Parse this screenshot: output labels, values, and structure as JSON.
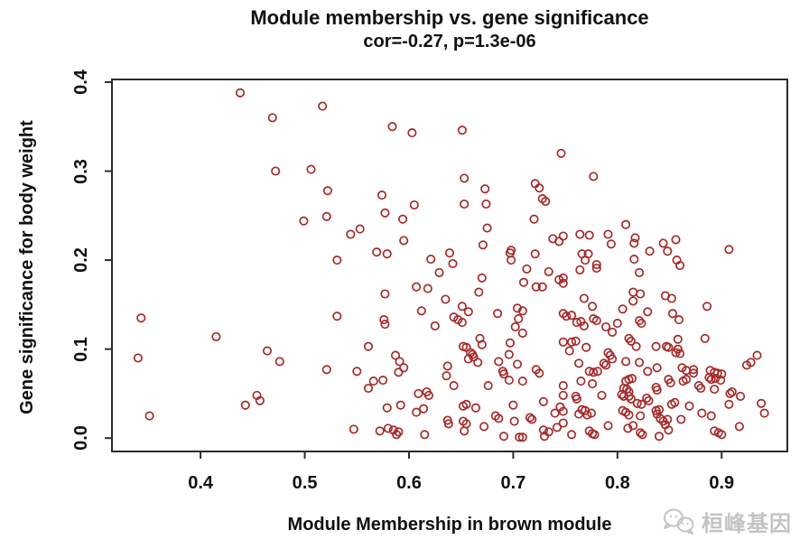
{
  "figure": {
    "title_line1": "Module membership vs. gene significance",
    "title_line2": "cor=-0.27, p=1.3e-06"
  },
  "watermark": {
    "text": "桓峰基因",
    "icon": "chat-bubbles-icon",
    "color": "#c3c3c3"
  },
  "style": {
    "axis_color": "#2b2b2b",
    "text_color": "#111111",
    "point_color": "#A52A2A",
    "background": "#ffffff"
  },
  "chart_data": {
    "type": "scatter",
    "title": "Module membership vs. gene significance",
    "subtitle": "cor=-0.27, p=1.3e-06",
    "correlation": -0.27,
    "p_value": "1.3e-06",
    "xlabel": "Module Membership in brown module",
    "ylabel": "Gene significance for body weight",
    "xlim": [
      0.315,
      0.963
    ],
    "ylim": [
      -0.015,
      0.403
    ],
    "x_ticks": [
      0.4,
      0.5,
      0.6,
      0.7,
      0.8,
      0.9
    ],
    "y_ticks": [
      0.0,
      0.1,
      0.2,
      0.3,
      0.4
    ],
    "grid": false,
    "legend": "none",
    "marker": "open-circle",
    "point_color": "#A52A2A",
    "points": [
      [
        0.438,
        0.388
      ],
      [
        0.517,
        0.373
      ],
      [
        0.469,
        0.36
      ],
      [
        0.472,
        0.3
      ],
      [
        0.506,
        0.302
      ],
      [
        0.522,
        0.278
      ],
      [
        0.521,
        0.249
      ],
      [
        0.499,
        0.244
      ],
      [
        0.531,
        0.2
      ],
      [
        0.584,
        0.35
      ],
      [
        0.603,
        0.343
      ],
      [
        0.651,
        0.346
      ],
      [
        0.746,
        0.32
      ],
      [
        0.653,
        0.292
      ],
      [
        0.673,
        0.28
      ],
      [
        0.574,
        0.273
      ],
      [
        0.605,
        0.262
      ],
      [
        0.653,
        0.263
      ],
      [
        0.674,
        0.263
      ],
      [
        0.721,
        0.286
      ],
      [
        0.725,
        0.281
      ],
      [
        0.728,
        0.269
      ],
      [
        0.731,
        0.266
      ],
      [
        0.577,
        0.253
      ],
      [
        0.594,
        0.246
      ],
      [
        0.72,
        0.246
      ],
      [
        0.544,
        0.229
      ],
      [
        0.553,
        0.235
      ],
      [
        0.675,
        0.236
      ],
      [
        0.595,
        0.222
      ],
      [
        0.738,
        0.224
      ],
      [
        0.744,
        0.221
      ],
      [
        0.569,
        0.209
      ],
      [
        0.579,
        0.207
      ],
      [
        0.671,
        0.217
      ],
      [
        0.698,
        0.211
      ],
      [
        0.697,
        0.208
      ],
      [
        0.621,
        0.201
      ],
      [
        0.639,
        0.208
      ],
      [
        0.642,
        0.196
      ],
      [
        0.698,
        0.2
      ],
      [
        0.721,
        0.207
      ],
      [
        0.777,
        0.294
      ],
      [
        0.808,
        0.24
      ],
      [
        0.764,
        0.229
      ],
      [
        0.773,
        0.228
      ],
      [
        0.791,
        0.229
      ],
      [
        0.794,
        0.218
      ],
      [
        0.817,
        0.225
      ],
      [
        0.816,
        0.219
      ],
      [
        0.856,
        0.223
      ],
      [
        0.844,
        0.219
      ],
      [
        0.848,
        0.21
      ],
      [
        0.831,
        0.21
      ],
      [
        0.907,
        0.212
      ],
      [
        0.766,
        0.207
      ],
      [
        0.772,
        0.207
      ],
      [
        0.769,
        0.2
      ],
      [
        0.78,
        0.195
      ],
      [
        0.816,
        0.201
      ],
      [
        0.857,
        0.2
      ],
      [
        0.748,
        0.227
      ],
      [
        0.343,
        0.135
      ],
      [
        0.415,
        0.114
      ],
      [
        0.34,
        0.09
      ],
      [
        0.464,
        0.098
      ],
      [
        0.476,
        0.086
      ],
      [
        0.521,
        0.077
      ],
      [
        0.531,
        0.137
      ],
      [
        0.454,
        0.048
      ],
      [
        0.457,
        0.042
      ],
      [
        0.443,
        0.037
      ],
      [
        0.351,
        0.025
      ],
      [
        0.629,
        0.186
      ],
      [
        0.67,
        0.18
      ],
      [
        0.713,
        0.19
      ],
      [
        0.734,
        0.187
      ],
      [
        0.607,
        0.17
      ],
      [
        0.618,
        0.168
      ],
      [
        0.577,
        0.162
      ],
      [
        0.667,
        0.164
      ],
      [
        0.71,
        0.175
      ],
      [
        0.722,
        0.17
      ],
      [
        0.728,
        0.17
      ],
      [
        0.744,
        0.178
      ],
      [
        0.748,
        0.174
      ],
      [
        0.635,
        0.156
      ],
      [
        0.651,
        0.148
      ],
      [
        0.612,
        0.143
      ],
      [
        0.643,
        0.136
      ],
      [
        0.647,
        0.133
      ],
      [
        0.651,
        0.13
      ],
      [
        0.657,
        0.142
      ],
      [
        0.685,
        0.14
      ],
      [
        0.704,
        0.146
      ],
      [
        0.709,
        0.143
      ],
      [
        0.625,
        0.126
      ],
      [
        0.576,
        0.133
      ],
      [
        0.577,
        0.128
      ],
      [
        0.705,
        0.134
      ],
      [
        0.702,
        0.125
      ],
      [
        0.709,
        0.118
      ],
      [
        0.668,
        0.112
      ],
      [
        0.67,
        0.105
      ],
      [
        0.697,
        0.107
      ],
      [
        0.561,
        0.103
      ],
      [
        0.652,
        0.103
      ],
      [
        0.655,
        0.102
      ],
      [
        0.659,
        0.096
      ],
      [
        0.661,
        0.094
      ],
      [
        0.662,
        0.091
      ],
      [
        0.657,
        0.089
      ],
      [
        0.666,
        0.085
      ],
      [
        0.686,
        0.086
      ],
      [
        0.696,
        0.094
      ],
      [
        0.704,
        0.083
      ],
      [
        0.587,
        0.093
      ],
      [
        0.591,
        0.086
      ],
      [
        0.595,
        0.079
      ],
      [
        0.59,
        0.074
      ],
      [
        0.55,
        0.075
      ],
      [
        0.637,
        0.081
      ],
      [
        0.636,
        0.07
      ],
      [
        0.69,
        0.075
      ],
      [
        0.691,
        0.072
      ],
      [
        0.696,
        0.065
      ],
      [
        0.722,
        0.077
      ],
      [
        0.725,
        0.073
      ],
      [
        0.709,
        0.064
      ],
      [
        0.566,
        0.064
      ],
      [
        0.575,
        0.065
      ],
      [
        0.561,
        0.056
      ],
      [
        0.643,
        0.059
      ],
      [
        0.676,
        0.059
      ],
      [
        0.609,
        0.05
      ],
      [
        0.617,
        0.052
      ],
      [
        0.619,
        0.048
      ],
      [
        0.579,
        0.034
      ],
      [
        0.592,
        0.037
      ],
      [
        0.607,
        0.029
      ],
      [
        0.614,
        0.033
      ],
      [
        0.652,
        0.036
      ],
      [
        0.655,
        0.038
      ],
      [
        0.664,
        0.034
      ],
      [
        0.7,
        0.037
      ],
      [
        0.729,
        0.041
      ],
      [
        0.745,
        0.035
      ],
      [
        0.74,
        0.028
      ],
      [
        0.637,
        0.02
      ],
      [
        0.638,
        0.016
      ],
      [
        0.652,
        0.019
      ],
      [
        0.655,
        0.016
      ],
      [
        0.672,
        0.013
      ],
      [
        0.683,
        0.025
      ],
      [
        0.686,
        0.022
      ],
      [
        0.701,
        0.019
      ],
      [
        0.716,
        0.023
      ],
      [
        0.718,
        0.021
      ],
      [
        0.547,
        0.01
      ],
      [
        0.572,
        0.008
      ],
      [
        0.58,
        0.011
      ],
      [
        0.585,
        0.009
      ],
      [
        0.59,
        0.007
      ],
      [
        0.588,
        0.004
      ],
      [
        0.615,
        0.004
      ],
      [
        0.653,
        0.008
      ],
      [
        0.691,
        0.002
      ],
      [
        0.709,
        0.001
      ],
      [
        0.729,
        0.009
      ],
      [
        0.734,
        0.007
      ],
      [
        0.73,
        0.002
      ],
      [
        0.748,
        0.048
      ],
      [
        0.706,
        0.001
      ],
      [
        0.742,
        0.012
      ],
      [
        0.748,
        0.017
      ],
      [
        0.764,
        0.189
      ],
      [
        0.78,
        0.191
      ],
      [
        0.821,
        0.186
      ],
      [
        0.86,
        0.194
      ],
      [
        0.748,
        0.18
      ],
      [
        0.768,
        0.157
      ],
      [
        0.776,
        0.148
      ],
      [
        0.815,
        0.164
      ],
      [
        0.822,
        0.162
      ],
      [
        0.815,
        0.154
      ],
      [
        0.846,
        0.16
      ],
      [
        0.852,
        0.157
      ],
      [
        0.886,
        0.148
      ],
      [
        0.805,
        0.145
      ],
      [
        0.829,
        0.142
      ],
      [
        0.853,
        0.14
      ],
      [
        0.859,
        0.133
      ],
      [
        0.821,
        0.132
      ],
      [
        0.823,
        0.129
      ],
      [
        0.748,
        0.14
      ],
      [
        0.751,
        0.137
      ],
      [
        0.756,
        0.138
      ],
      [
        0.761,
        0.13
      ],
      [
        0.765,
        0.131
      ],
      [
        0.768,
        0.126
      ],
      [
        0.777,
        0.134
      ],
      [
        0.78,
        0.132
      ],
      [
        0.789,
        0.125
      ],
      [
        0.8,
        0.129
      ],
      [
        0.795,
        0.119
      ],
      [
        0.811,
        0.112
      ],
      [
        0.813,
        0.109
      ],
      [
        0.818,
        0.103
      ],
      [
        0.748,
        0.108
      ],
      [
        0.756,
        0.108
      ],
      [
        0.754,
        0.098
      ],
      [
        0.76,
        0.109
      ],
      [
        0.77,
        0.102
      ],
      [
        0.837,
        0.103
      ],
      [
        0.847,
        0.103
      ],
      [
        0.849,
        0.102
      ],
      [
        0.858,
        0.111
      ],
      [
        0.858,
        0.1
      ],
      [
        0.856,
        0.096
      ],
      [
        0.86,
        0.095
      ],
      [
        0.884,
        0.112
      ],
      [
        0.924,
        0.082
      ],
      [
        0.928,
        0.085
      ],
      [
        0.934,
        0.093
      ],
      [
        0.791,
        0.096
      ],
      [
        0.793,
        0.093
      ],
      [
        0.795,
        0.089
      ],
      [
        0.787,
        0.084
      ],
      [
        0.789,
        0.082
      ],
      [
        0.763,
        0.084
      ],
      [
        0.773,
        0.075
      ],
      [
        0.777,
        0.074
      ],
      [
        0.781,
        0.075
      ],
      [
        0.808,
        0.086
      ],
      [
        0.821,
        0.085
      ],
      [
        0.829,
        0.075
      ],
      [
        0.838,
        0.079
      ],
      [
        0.862,
        0.079
      ],
      [
        0.866,
        0.076
      ],
      [
        0.873,
        0.077
      ],
      [
        0.873,
        0.073
      ],
      [
        0.889,
        0.076
      ],
      [
        0.893,
        0.074
      ],
      [
        0.888,
        0.068
      ],
      [
        0.89,
        0.066
      ],
      [
        0.849,
        0.066
      ],
      [
        0.851,
        0.062
      ],
      [
        0.863,
        0.064
      ],
      [
        0.866,
        0.066
      ],
      [
        0.878,
        0.059
      ],
      [
        0.88,
        0.056
      ],
      [
        0.765,
        0.064
      ],
      [
        0.776,
        0.061
      ],
      [
        0.748,
        0.059
      ],
      [
        0.808,
        0.064
      ],
      [
        0.811,
        0.066
      ],
      [
        0.814,
        0.067
      ],
      [
        0.806,
        0.056
      ],
      [
        0.809,
        0.055
      ],
      [
        0.811,
        0.052
      ],
      [
        0.837,
        0.057
      ],
      [
        0.838,
        0.054
      ],
      [
        0.893,
        0.055
      ],
      [
        0.908,
        0.05
      ],
      [
        0.918,
        0.047
      ],
      [
        0.76,
        0.047
      ],
      [
        0.761,
        0.044
      ],
      [
        0.785,
        0.048
      ],
      [
        0.804,
        0.049
      ],
      [
        0.806,
        0.047
      ],
      [
        0.811,
        0.047
      ],
      [
        0.813,
        0.044
      ],
      [
        0.828,
        0.045
      ],
      [
        0.83,
        0.042
      ],
      [
        0.819,
        0.039
      ],
      [
        0.823,
        0.038
      ],
      [
        0.852,
        0.038
      ],
      [
        0.855,
        0.04
      ],
      [
        0.869,
        0.036
      ],
      [
        0.907,
        0.038
      ],
      [
        0.938,
        0.039
      ],
      [
        0.941,
        0.028
      ],
      [
        0.766,
        0.032
      ],
      [
        0.769,
        0.031
      ],
      [
        0.763,
        0.027
      ],
      [
        0.771,
        0.026
      ],
      [
        0.775,
        0.028
      ],
      [
        0.748,
        0.03
      ],
      [
        0.805,
        0.031
      ],
      [
        0.808,
        0.029
      ],
      [
        0.811,
        0.026
      ],
      [
        0.815,
        0.014
      ],
      [
        0.81,
        0.011
      ],
      [
        0.822,
        0.025
      ],
      [
        0.837,
        0.031
      ],
      [
        0.84,
        0.032
      ],
      [
        0.838,
        0.027
      ],
      [
        0.841,
        0.022
      ],
      [
        0.844,
        0.019
      ],
      [
        0.848,
        0.021
      ],
      [
        0.846,
        0.015
      ],
      [
        0.849,
        0.009
      ],
      [
        0.861,
        0.021
      ],
      [
        0.881,
        0.028
      ],
      [
        0.89,
        0.025
      ],
      [
        0.917,
        0.013
      ],
      [
        0.791,
        0.014
      ],
      [
        0.773,
        0.008
      ],
      [
        0.776,
        0.005
      ],
      [
        0.778,
        0.004
      ],
      [
        0.756,
        0.004
      ],
      [
        0.822,
        0.006
      ],
      [
        0.824,
        0.004
      ],
      [
        0.84,
        0.002
      ],
      [
        0.893,
        0.008
      ],
      [
        0.897,
        0.006
      ],
      [
        0.9,
        0.004
      ],
      [
        0.896,
        0.073
      ],
      [
        0.9,
        0.072
      ],
      [
        0.894,
        0.067
      ],
      [
        0.899,
        0.065
      ],
      [
        0.91,
        0.052
      ]
    ]
  }
}
